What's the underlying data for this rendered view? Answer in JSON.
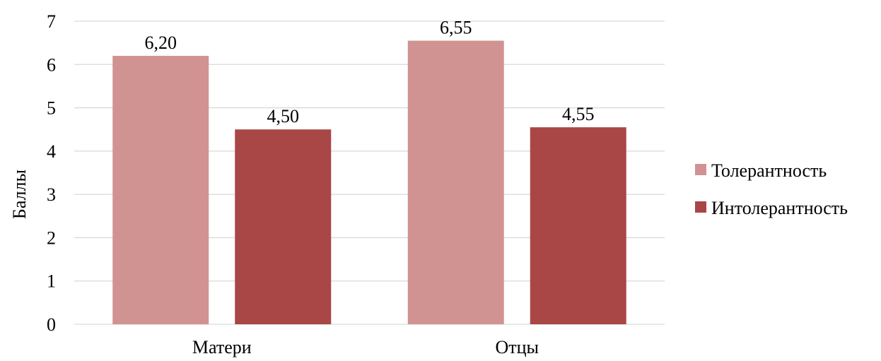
{
  "chart_data": {
    "type": "bar",
    "categories": [
      "Матери",
      "Отцы"
    ],
    "series": [
      {
        "name": "Толерантность",
        "values": [
          6.2,
          6.55
        ],
        "labels": [
          "6,20",
          "6,55"
        ],
        "color": "#d19392"
      },
      {
        "name": "Интолерантность",
        "values": [
          4.5,
          4.55
        ],
        "labels": [
          "4,50",
          "4,55"
        ],
        "color": "#a94746"
      }
    ],
    "ylabel": "Баллы",
    "ylim": [
      0,
      7
    ],
    "yticks": [
      "0",
      "1",
      "2",
      "3",
      "4",
      "5",
      "6",
      "7"
    ],
    "grid": true,
    "gridColor": "#d9d9d9",
    "legend": "right"
  }
}
